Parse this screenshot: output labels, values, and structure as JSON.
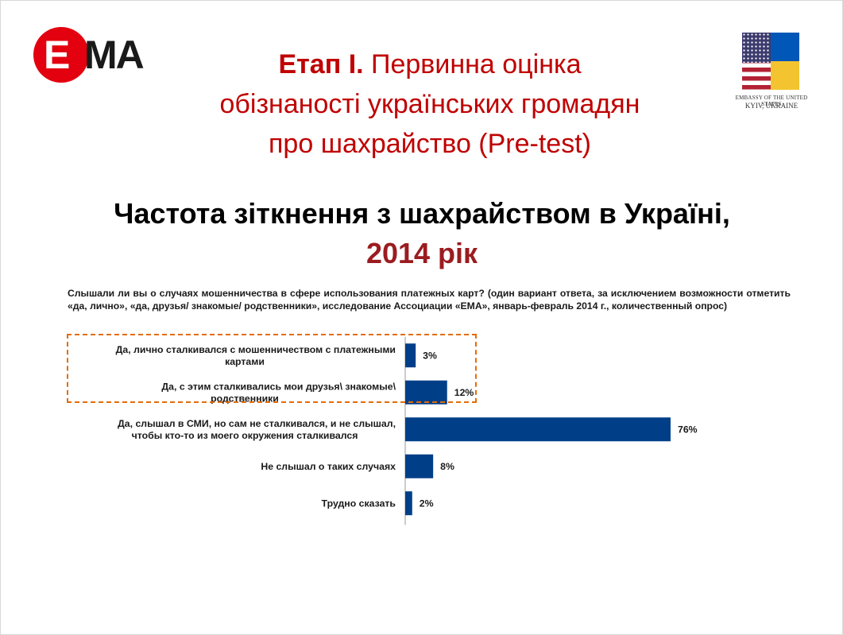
{
  "logo": {
    "letter": "E",
    "rest": "MA"
  },
  "embassy": {
    "line1": "EMBASSY OF THE UNITED STATES",
    "line2": "KYIV, UKRAINE"
  },
  "title": {
    "bold": "Етап І.",
    "rest": " Первинна оцінка",
    "line2": "обізнаності українських громадян",
    "line3": "про шахрайство (Pre-test)"
  },
  "subtitle": {
    "line1": "Частота зіткнення з шахрайством в Україні,",
    "line2": "2014 рік"
  },
  "question": "Слышали ли вы о случаях мошенничества в сфере использования платежных карт? (один вариант ответа, за исключением возможности отметить «да, лично», «да, друзья/ знакомые/ родственники», исследование Ассоциации «ЕМА», январь-февраль 2014 г., количественный опрос)",
  "colors": {
    "title_red": "#c00000",
    "year_red": "#9b1c20",
    "bar": "#003f88",
    "highlight": "#e36c09"
  },
  "chart_data": {
    "type": "bar",
    "orientation": "horizontal",
    "categories": [
      [
        "Да, лично сталкивался с мошенничеством  с платежными",
        "картами"
      ],
      [
        "Да, с этим сталкивались мои друзья\\ знакомые\\",
        "родственники"
      ],
      [
        "Да, слышал  в СМИ, но сам не сталкивался, и не слышал,",
        "чтобы кто-то из моего окружения сталкивался"
      ],
      [
        "Не слышал  о таких случаях"
      ],
      [
        "Трудно сказать"
      ]
    ],
    "values": [
      3,
      12,
      76,
      8,
      2
    ],
    "value_labels": [
      "3%",
      "12%",
      "76%",
      "8%",
      "2%"
    ],
    "unit": "%",
    "highlighted": [
      0,
      1
    ]
  }
}
